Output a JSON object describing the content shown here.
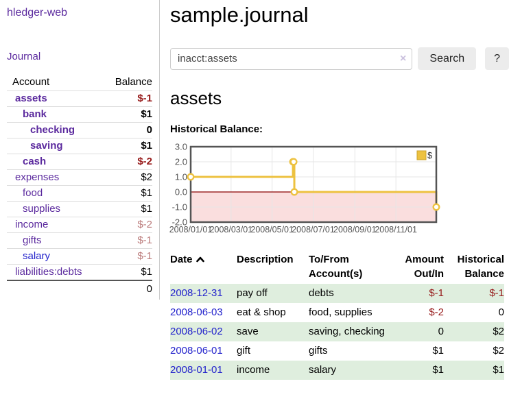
{
  "app": {
    "title": "hledger-web"
  },
  "sidebar": {
    "journal_link": "Journal",
    "account_header": "Account",
    "balance_header": "Balance",
    "accounts": [
      {
        "name": "assets",
        "depth": 1,
        "bold": true,
        "link_color": "purple",
        "balance": "$-1",
        "balance_style": "negative",
        "balance_bold": true
      },
      {
        "name": "bank",
        "depth": 2,
        "bold": true,
        "link_color": "purple",
        "balance": "$1",
        "balance_style": "normal",
        "balance_bold": true
      },
      {
        "name": "checking",
        "depth": 3,
        "bold": true,
        "link_color": "purple",
        "balance": "0",
        "balance_style": "normal",
        "balance_bold": true
      },
      {
        "name": "saving",
        "depth": 3,
        "bold": true,
        "link_color": "purple",
        "balance": "$1",
        "balance_style": "normal",
        "balance_bold": true
      },
      {
        "name": "cash",
        "depth": 2,
        "bold": true,
        "link_color": "purple",
        "balance": "$-2",
        "balance_style": "negative",
        "balance_bold": true
      },
      {
        "name": "expenses",
        "depth": 1,
        "bold": false,
        "link_color": "purple",
        "balance": "$2",
        "balance_style": "normal",
        "balance_bold": false
      },
      {
        "name": "food",
        "depth": 2,
        "bold": false,
        "link_color": "purple",
        "balance": "$1",
        "balance_style": "normal",
        "balance_bold": false
      },
      {
        "name": "supplies",
        "depth": 2,
        "bold": false,
        "link_color": "purple",
        "balance": "$1",
        "balance_style": "normal",
        "balance_bold": false
      },
      {
        "name": "income",
        "depth": 1,
        "bold": false,
        "link_color": "purple",
        "balance": "$-2",
        "balance_style": "negative-muted",
        "balance_bold": false
      },
      {
        "name": "gifts",
        "depth": 2,
        "bold": false,
        "link_color": "purple",
        "balance": "$-1",
        "balance_style": "negative-muted",
        "balance_bold": false
      },
      {
        "name": "salary",
        "depth": 2,
        "bold": false,
        "link_color": "blue",
        "balance": "$-1",
        "balance_style": "negative-muted",
        "balance_bold": false
      },
      {
        "name": "liabilities:debts",
        "depth": 1,
        "bold": false,
        "link_color": "purple",
        "balance": "$1",
        "balance_style": "normal",
        "balance_bold": false
      }
    ],
    "total": "0"
  },
  "main": {
    "title": "sample.journal",
    "search": {
      "value": "inacct:assets",
      "clear_icon": "×",
      "button_label": "Search",
      "help_label": "?"
    },
    "account_heading": "assets",
    "chart_heading": "Historical Balance:"
  },
  "chart_data": {
    "type": "line",
    "step": true,
    "title": "Historical Balance:",
    "series": [
      {
        "name": "$",
        "color": "#edc240",
        "points": [
          [
            "2008-01-01",
            1
          ],
          [
            "2008-06-01",
            2
          ],
          [
            "2008-06-02",
            2
          ],
          [
            "2008-06-03",
            0
          ],
          [
            "2008-12-31",
            -1
          ]
        ]
      }
    ],
    "x_range": [
      "2008-01-01",
      "2008-12-31"
    ],
    "x_ticks": [
      {
        "date": "2008-01-01",
        "label": "2008/01/01"
      },
      {
        "date": "2008-03-01",
        "label": "2008/03/01"
      },
      {
        "date": "2008-05-01",
        "label": "2008/05/01"
      },
      {
        "date": "2008-07-01",
        "label": "2008/07/01"
      },
      {
        "date": "2008-09-01",
        "label": "2008/09/01"
      },
      {
        "date": "2008-11-01",
        "label": "2008/11/01"
      }
    ],
    "y_ticks": [
      {
        "value": 3,
        "label": "3.0"
      },
      {
        "value": 2,
        "label": "2.0"
      },
      {
        "value": 1,
        "label": "1.0"
      },
      {
        "value": 0,
        "label": "0.0"
      },
      {
        "value": -1,
        "label": "-1.0"
      },
      {
        "value": -2,
        "label": "-2.0"
      }
    ],
    "ylim": [
      -2,
      3
    ],
    "grid": true,
    "legend_position": "top-right",
    "legend_label": "$",
    "negative_region_color": "#fadede",
    "zero_line_color": "#8b0000",
    "grid_color": "#e6e6e6",
    "border_color": "#545454",
    "tick_text_color": "#545454"
  },
  "register": {
    "headers": {
      "date": "Date",
      "description": "Description",
      "accounts": "To/From Account(s)",
      "amount": "Amount Out/In",
      "balance": "Historical Balance"
    },
    "rows": [
      {
        "date": "2008-12-31",
        "description": "pay off",
        "accounts": "debts",
        "amount": "$-1",
        "amount_negative": true,
        "balance": "$-1",
        "balance_negative": true
      },
      {
        "date": "2008-06-03",
        "description": "eat & shop",
        "accounts": "food, supplies",
        "amount": "$-2",
        "amount_negative": true,
        "balance": "0",
        "balance_negative": false
      },
      {
        "date": "2008-06-02",
        "description": "save",
        "accounts": "saving, checking",
        "amount": "0",
        "amount_negative": false,
        "balance": "$2",
        "balance_negative": false
      },
      {
        "date": "2008-06-01",
        "description": "gift",
        "accounts": "gifts",
        "amount": "$1",
        "amount_negative": false,
        "balance": "$2",
        "balance_negative": false
      },
      {
        "date": "2008-01-01",
        "description": "income",
        "accounts": "salary",
        "amount": "$1",
        "amount_negative": false,
        "balance": "$1",
        "balance_negative": false
      }
    ]
  },
  "colors": {
    "purple_link": "#5b2a9e",
    "blue_link": "#2323cc",
    "negative": "#961919",
    "negative_muted": "#bb7b7b",
    "row_stripe": "#dfeede",
    "chart_line": "#edc240"
  }
}
